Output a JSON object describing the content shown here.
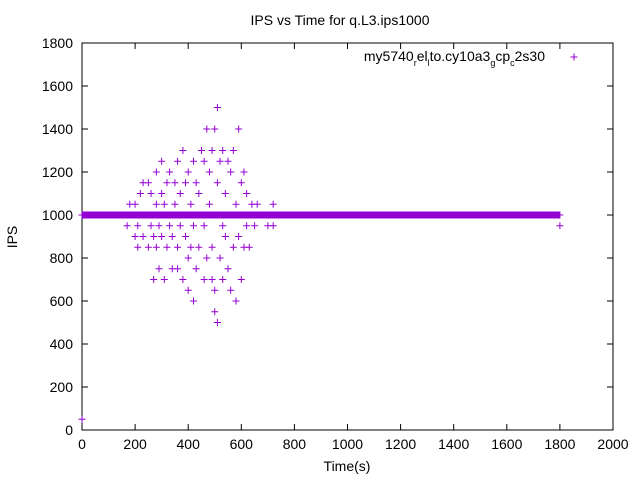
{
  "chart_data": {
    "type": "scatter",
    "title": "IPS vs Time for q.L3.ips1000",
    "xlabel": "Time(s)",
    "ylabel": "IPS",
    "xlim": [
      0,
      2000
    ],
    "ylim": [
      0,
      1800
    ],
    "xticks": [
      0,
      200,
      400,
      600,
      800,
      1000,
      1200,
      1400,
      1600,
      1800,
      2000
    ],
    "yticks": [
      0,
      200,
      400,
      600,
      800,
      1000,
      1200,
      1400,
      1600,
      1800
    ],
    "grid": false,
    "legend_position": "top-right",
    "marker": "plus",
    "color": "#9400d3",
    "legend": {
      "parts": [
        {
          "text": "my5740",
          "sub": false
        },
        {
          "text": "r",
          "sub": true
        },
        {
          "text": "el",
          "sub": false
        },
        {
          "text": "l",
          "sub": true
        },
        {
          "text": "to.cy10a3",
          "sub": false
        },
        {
          "text": "g",
          "sub": true
        },
        {
          "text": "cp",
          "sub": false
        },
        {
          "text": "c",
          "sub": true
        },
        {
          "text": "2s30",
          "sub": false
        }
      ]
    },
    "series": [
      {
        "dense_band": {
          "x_from": 0,
          "x_to": 1800,
          "step": 2,
          "y": 1000
        },
        "points": [
          [
            0,
            50
          ],
          [
            170,
            950
          ],
          [
            180,
            1050
          ],
          [
            190,
            1000
          ],
          [
            200,
            900
          ],
          [
            200,
            1050
          ],
          [
            210,
            850
          ],
          [
            210,
            950
          ],
          [
            220,
            1100
          ],
          [
            230,
            900
          ],
          [
            230,
            1150
          ],
          [
            240,
            1000
          ],
          [
            250,
            850
          ],
          [
            250,
            1150
          ],
          [
            260,
            950
          ],
          [
            260,
            1100
          ],
          [
            270,
            700
          ],
          [
            270,
            900
          ],
          [
            280,
            850
          ],
          [
            280,
            1050
          ],
          [
            280,
            1200
          ],
          [
            290,
            750
          ],
          [
            290,
            950
          ],
          [
            300,
            900
          ],
          [
            300,
            1100
          ],
          [
            300,
            1250
          ],
          [
            310,
            700
          ],
          [
            310,
            1050
          ],
          [
            320,
            850
          ],
          [
            320,
            1150
          ],
          [
            330,
            950
          ],
          [
            330,
            1200
          ],
          [
            340,
            750
          ],
          [
            340,
            900
          ],
          [
            350,
            1050
          ],
          [
            350,
            1150
          ],
          [
            360,
            750
          ],
          [
            360,
            850
          ],
          [
            360,
            1250
          ],
          [
            370,
            950
          ],
          [
            370,
            1100
          ],
          [
            380,
            700
          ],
          [
            380,
            1000
          ],
          [
            380,
            1300
          ],
          [
            390,
            900
          ],
          [
            390,
            1150
          ],
          [
            400,
            650
          ],
          [
            400,
            800
          ],
          [
            400,
            1200
          ],
          [
            410,
            850
          ],
          [
            410,
            1050
          ],
          [
            420,
            600
          ],
          [
            420,
            950
          ],
          [
            420,
            1250
          ],
          [
            430,
            750
          ],
          [
            430,
            1150
          ],
          [
            440,
            850
          ],
          [
            440,
            1100
          ],
          [
            450,
            1300
          ],
          [
            460,
            700
          ],
          [
            460,
            950
          ],
          [
            460,
            1250
          ],
          [
            470,
            1400
          ],
          [
            470,
            800
          ],
          [
            480,
            1050
          ],
          [
            480,
            1200
          ],
          [
            490,
            700
          ],
          [
            490,
            1300
          ],
          [
            490,
            850
          ],
          [
            500,
            1400
          ],
          [
            500,
            550
          ],
          [
            500,
            650
          ],
          [
            510,
            1500
          ],
          [
            510,
            500
          ],
          [
            510,
            1150
          ],
          [
            520,
            800
          ],
          [
            520,
            1250
          ],
          [
            530,
            700
          ],
          [
            530,
            950
          ],
          [
            530,
            1300
          ],
          [
            540,
            900
          ],
          [
            540,
            1100
          ],
          [
            550,
            750
          ],
          [
            550,
            1250
          ],
          [
            560,
            650
          ],
          [
            560,
            1200
          ],
          [
            570,
            850
          ],
          [
            570,
            1300
          ],
          [
            580,
            600
          ],
          [
            580,
            1050
          ],
          [
            590,
            1400
          ],
          [
            590,
            900
          ],
          [
            600,
            700
          ],
          [
            600,
            1150
          ],
          [
            610,
            850
          ],
          [
            610,
            1200
          ],
          [
            620,
            950
          ],
          [
            620,
            1100
          ],
          [
            630,
            850
          ],
          [
            640,
            1050
          ],
          [
            650,
            950
          ],
          [
            660,
            1050
          ],
          [
            700,
            950
          ],
          [
            720,
            1050
          ],
          [
            720,
            950
          ],
          [
            1680,
            1000
          ],
          [
            1800,
            950
          ]
        ]
      }
    ]
  }
}
